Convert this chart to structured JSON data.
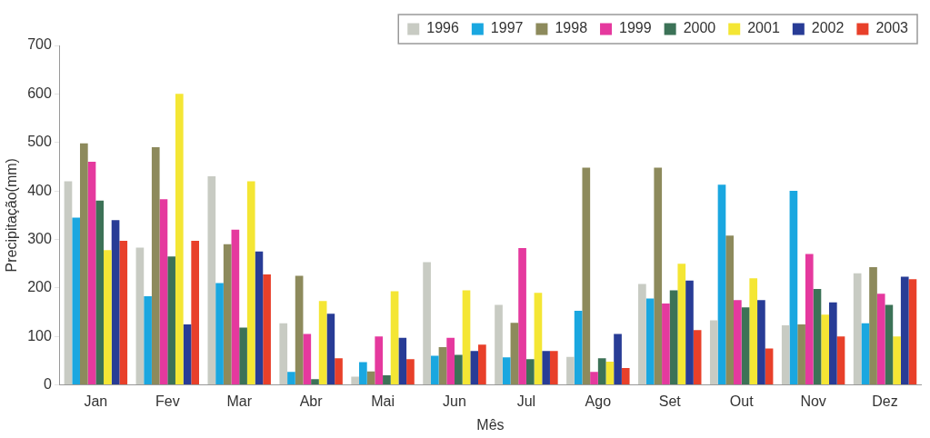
{
  "chart_data": {
    "type": "bar",
    "xlabel": "Mês",
    "ylabel": "Precipitação(mm)",
    "categories": [
      "Jan",
      "Fev",
      "Mar",
      "Abr",
      "Mai",
      "Jun",
      "Jul",
      "Ago",
      "Set",
      "Out",
      "Nov",
      "Dez"
    ],
    "series": [
      {
        "name": "1996",
        "color": "#c8cbc3",
        "values": [
          420,
          283,
          430,
          127,
          17,
          253,
          165,
          58,
          208,
          133,
          123,
          230
        ]
      },
      {
        "name": "1997",
        "color": "#1aa7e0",
        "values": [
          345,
          183,
          210,
          27,
          47,
          60,
          57,
          153,
          178,
          413,
          400,
          127
        ]
      },
      {
        "name": "1998",
        "color": "#8d8a5c",
        "values": [
          498,
          490,
          290,
          225,
          28,
          78,
          128,
          448,
          448,
          308,
          125,
          243
        ]
      },
      {
        "name": "1999",
        "color": "#e5399e",
        "values": [
          460,
          383,
          320,
          105,
          100,
          97,
          282,
          27,
          168,
          175,
          270,
          188
        ]
      },
      {
        "name": "2000",
        "color": "#3c7257",
        "values": [
          380,
          265,
          118,
          12,
          20,
          62,
          53,
          55,
          195,
          160,
          198,
          165
        ]
      },
      {
        "name": "2001",
        "color": "#f4e634",
        "values": [
          278,
          600,
          420,
          173,
          193,
          195,
          190,
          48,
          250,
          220,
          145,
          100
        ]
      },
      {
        "name": "2002",
        "color": "#283c96",
        "values": [
          340,
          125,
          275,
          147,
          97,
          70,
          70,
          105,
          215,
          175,
          170,
          223
        ]
      },
      {
        "name": "2003",
        "color": "#e8402a",
        "values": [
          297,
          297,
          228,
          55,
          53,
          83,
          70,
          35,
          113,
          75,
          100,
          218
        ]
      }
    ],
    "ylim": [
      0,
      700
    ],
    "yticks": [
      0,
      100,
      200,
      300,
      400,
      500,
      600,
      700
    ],
    "grid": false,
    "legend": "top right"
  }
}
